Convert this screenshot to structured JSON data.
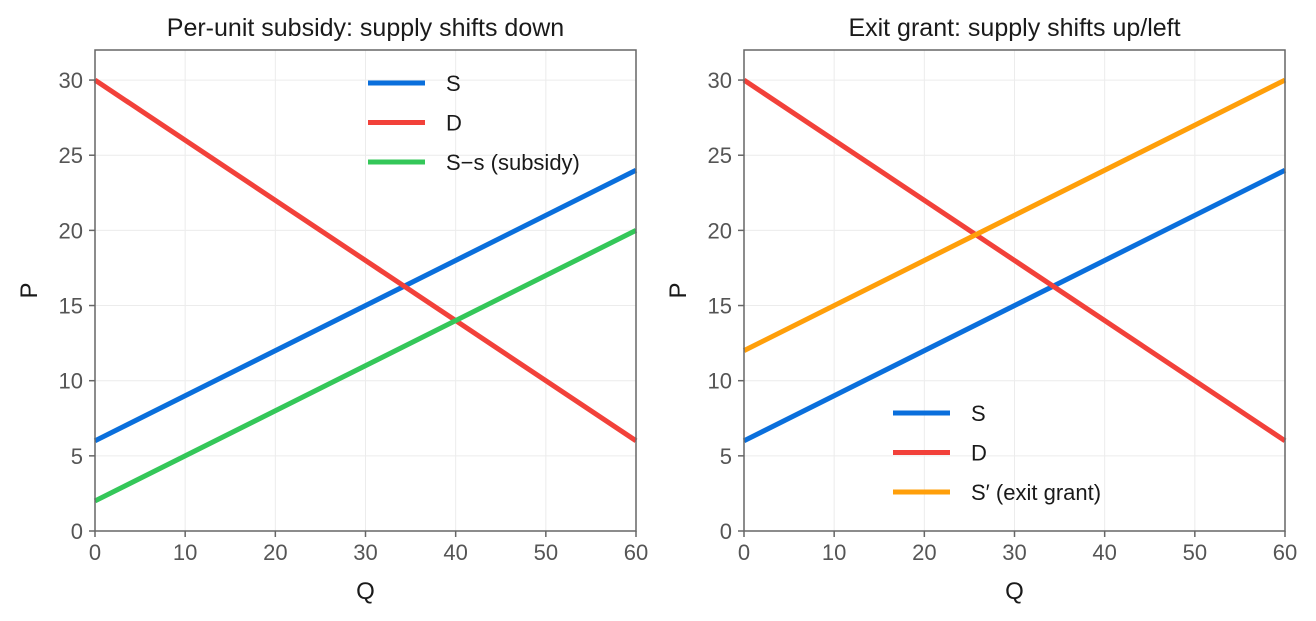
{
  "chart_data": [
    {
      "type": "line",
      "title": "Per-unit subsidy: supply shifts down",
      "xlabel": "Q",
      "ylabel": "P",
      "xlim": [
        0,
        60
      ],
      "ylim": [
        0,
        32
      ],
      "xticks": [
        0,
        10,
        20,
        30,
        40,
        50,
        60
      ],
      "yticks": [
        0,
        5,
        10,
        15,
        20,
        25,
        30
      ],
      "grid": true,
      "legend_position": "top-right",
      "series": [
        {
          "name": "S",
          "color": "#0a6fdc",
          "x": [
            0,
            60
          ],
          "y": [
            6,
            24
          ]
        },
        {
          "name": "D",
          "color": "#f2413a",
          "x": [
            0,
            60
          ],
          "y": [
            30,
            6
          ]
        },
        {
          "name": "S−s (subsidy)",
          "color": "#34c759",
          "x": [
            0,
            60
          ],
          "y": [
            2,
            20
          ]
        }
      ]
    },
    {
      "type": "line",
      "title": "Exit grant: supply shifts up/left",
      "xlabel": "Q",
      "ylabel": "P",
      "xlim": [
        0,
        60
      ],
      "ylim": [
        0,
        32
      ],
      "xticks": [
        0,
        10,
        20,
        30,
        40,
        50,
        60
      ],
      "yticks": [
        0,
        5,
        10,
        15,
        20,
        25,
        30
      ],
      "grid": true,
      "legend_position": "bottom-center",
      "series": [
        {
          "name": "S",
          "color": "#0a6fdc",
          "x": [
            0,
            60
          ],
          "y": [
            6,
            24
          ]
        },
        {
          "name": "D",
          "color": "#f2413a",
          "x": [
            0,
            60
          ],
          "y": [
            30,
            6
          ]
        },
        {
          "name": "S′ (exit grant)",
          "color": "#ff9f0a",
          "x": [
            0,
            60
          ],
          "y": [
            12,
            30
          ]
        }
      ]
    }
  ]
}
